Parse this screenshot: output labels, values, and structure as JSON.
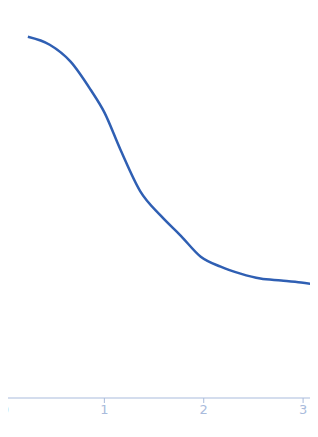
{
  "chart_data": {
    "type": "line",
    "x": [
      0.23,
      0.45,
      0.66,
      0.86,
      1.0,
      1.16,
      1.36,
      1.57,
      1.77,
      1.97,
      2.17,
      2.37,
      2.57,
      2.78,
      2.98,
      3.14
    ],
    "values": [
      3.93,
      3.85,
      3.68,
      3.4,
      3.17,
      2.8,
      2.38,
      2.13,
      1.93,
      1.72,
      1.62,
      1.55,
      1.5,
      1.48,
      1.46,
      1.44
    ],
    "color": "#2f5fb3",
    "xlim": [
      0,
      3.15
    ],
    "xticks": [
      0,
      1,
      2,
      3
    ],
    "ylim": [
      0.3,
      4.3
    ],
    "yticks": [
      1,
      2,
      3,
      4
    ],
    "tick_labels": "x",
    "grid": false
  }
}
